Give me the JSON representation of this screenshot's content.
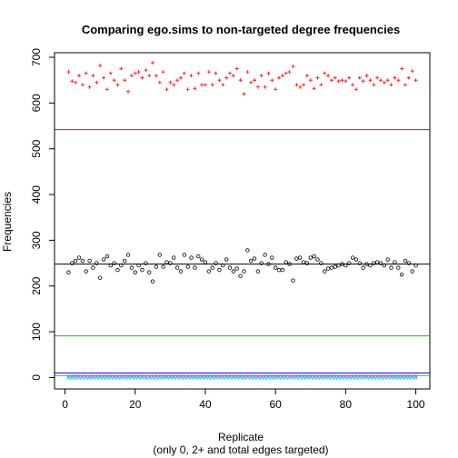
{
  "chart_data": {
    "type": "scatter",
    "title": "Comparing ego.sims to non-targeted degree frequencies",
    "xlabel": "Replicate",
    "xlabel_sub": "(only 0, 2+ and total edges targeted)",
    "ylabel": "Frequencies",
    "xlim": [
      -3,
      104
    ],
    "ylim": [
      -25,
      710
    ],
    "x_ticks": [
      0,
      20,
      40,
      60,
      80,
      100
    ],
    "y_ticks": [
      0,
      100,
      200,
      300,
      400,
      500,
      600,
      700
    ],
    "grid": false,
    "series": [
      {
        "marker": "+",
        "color": "#ff0000",
        "x": [
          1,
          2,
          3,
          4,
          5,
          6,
          7,
          8,
          9,
          10,
          11,
          12,
          13,
          14,
          15,
          16,
          17,
          18,
          19,
          20,
          21,
          22,
          23,
          24,
          25,
          26,
          27,
          28,
          29,
          30,
          31,
          32,
          33,
          34,
          35,
          36,
          37,
          38,
          39,
          40,
          41,
          42,
          43,
          44,
          45,
          46,
          47,
          48,
          49,
          50,
          51,
          52,
          53,
          54,
          55,
          56,
          57,
          58,
          59,
          60,
          61,
          62,
          63,
          64,
          65,
          66,
          67,
          68,
          69,
          70,
          71,
          72,
          73,
          74,
          75,
          76,
          77,
          78,
          79,
          80,
          81,
          82,
          83,
          84,
          85,
          86,
          87,
          88,
          89,
          90,
          91,
          92,
          93,
          94,
          95,
          96,
          97,
          98,
          99,
          100
        ],
        "y": [
          668,
          648,
          645,
          660,
          640,
          665,
          635,
          660,
          645,
          682,
          655,
          630,
          665,
          650,
          640,
          675,
          650,
          625,
          660,
          665,
          668,
          655,
          672,
          660,
          688,
          660,
          645,
          668,
          630,
          645,
          640,
          650,
          655,
          665,
          630,
          660,
          632,
          665,
          640,
          640,
          668,
          640,
          665,
          650,
          640,
          655,
          665,
          660,
          675,
          650,
          620,
          668,
          645,
          650,
          635,
          660,
          635,
          665,
          650,
          630,
          655,
          660,
          665,
          668,
          680,
          640,
          635,
          640,
          660,
          650,
          632,
          655,
          640,
          665,
          660,
          650,
          655,
          648,
          650,
          648,
          655,
          640,
          630,
          655,
          648,
          660,
          650,
          640,
          655,
          650,
          645,
          650,
          640,
          655,
          650,
          675,
          640,
          655,
          670,
          650
        ]
      },
      {
        "marker": "o",
        "color": "#000000",
        "x": [
          1,
          2,
          3,
          4,
          5,
          6,
          7,
          8,
          9,
          10,
          11,
          12,
          13,
          14,
          15,
          16,
          17,
          18,
          19,
          20,
          21,
          22,
          23,
          24,
          25,
          26,
          27,
          28,
          29,
          30,
          31,
          32,
          33,
          34,
          35,
          36,
          37,
          38,
          39,
          40,
          41,
          42,
          43,
          44,
          45,
          46,
          47,
          48,
          49,
          50,
          51,
          52,
          53,
          54,
          55,
          56,
          57,
          58,
          59,
          60,
          61,
          62,
          63,
          64,
          65,
          66,
          67,
          68,
          69,
          70,
          71,
          72,
          73,
          74,
          75,
          76,
          77,
          78,
          79,
          80,
          81,
          82,
          83,
          84,
          85,
          86,
          87,
          88,
          89,
          90,
          91,
          92,
          93,
          94,
          95,
          96,
          97,
          98,
          99,
          100
        ],
        "y": [
          230,
          250,
          255,
          262,
          255,
          232,
          255,
          240,
          250,
          218,
          258,
          265,
          245,
          250,
          235,
          245,
          255,
          268,
          240,
          230,
          245,
          235,
          250,
          230,
          210,
          242,
          268,
          242,
          252,
          250,
          262,
          240,
          232,
          268,
          242,
          262,
          240,
          265,
          258,
          252,
          232,
          240,
          250,
          235,
          245,
          258,
          240,
          232,
          238,
          222,
          232,
          278,
          255,
          260,
          232,
          250,
          268,
          248,
          262,
          240,
          235,
          235,
          252,
          248,
          212,
          260,
          262,
          252,
          250,
          262,
          265,
          258,
          250,
          232,
          238,
          240,
          242,
          245,
          248,
          245,
          250,
          262,
          258,
          250,
          240,
          248,
          245,
          250,
          252,
          250,
          245,
          258,
          240,
          252,
          240,
          225,
          255,
          250,
          232,
          245
        ]
      }
    ],
    "baselines": [
      {
        "y": 0,
        "marker": "triangle",
        "color": "#00cccc"
      },
      {
        "y": 2,
        "marker": "x",
        "color": "#00cccc"
      },
      {
        "y": 3,
        "marker": "diamond",
        "color": "#ff00ff"
      }
    ],
    "hlines": [
      {
        "y": 542,
        "color": "#ff0000"
      },
      {
        "y": 248,
        "color": "#000000"
      },
      {
        "y": 91,
        "color": "#00cc00"
      },
      {
        "y": 10,
        "color": "#0000ff"
      },
      {
        "y": 4,
        "color": "#00cccc"
      }
    ]
  }
}
